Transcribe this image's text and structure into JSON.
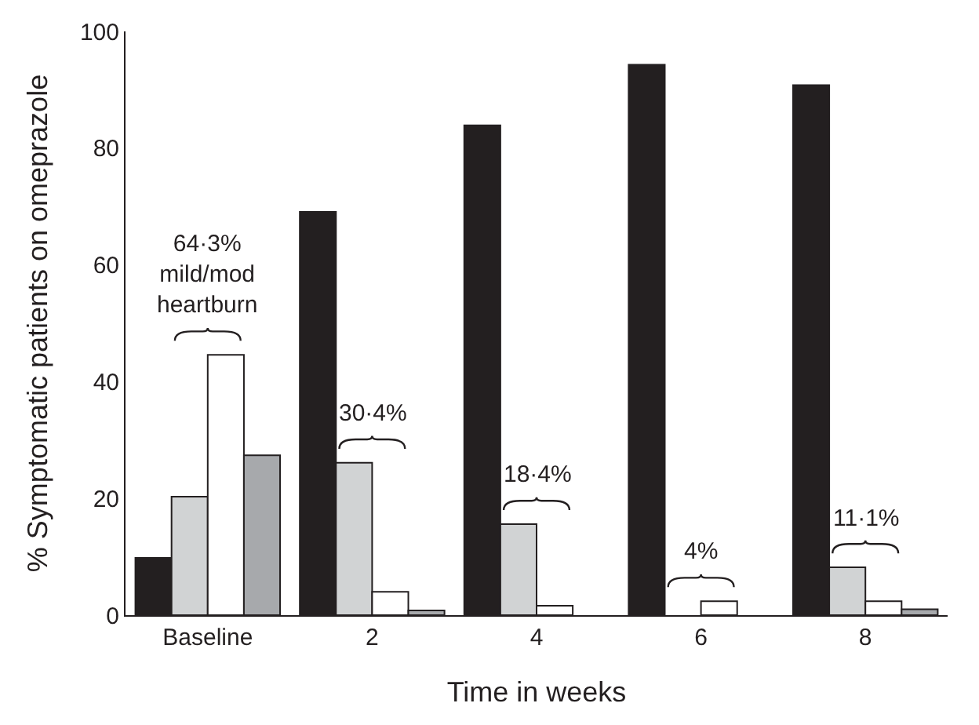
{
  "chart_data": {
    "type": "bar",
    "xlabel": "Time in weeks",
    "ylabel": "% Symptomatic patients on omeprazole",
    "categories": [
      "Baseline",
      "2",
      "4",
      "6",
      "8"
    ],
    "series": [
      {
        "color": "#231f20",
        "values": [
          9.8,
          69.1,
          83.9,
          94.3,
          90.8
        ]
      },
      {
        "color": "#d1d3d4",
        "values": [
          20.3,
          26.1,
          15.6,
          null,
          8.2
        ]
      },
      {
        "color": "#ffffff",
        "values": [
          44.6,
          4.0,
          1.6,
          2.4,
          2.4
        ]
      },
      {
        "color": "#a7a9ac",
        "values": [
          27.4,
          0.8,
          null,
          null,
          1.0
        ]
      }
    ],
    "ylim": [
      0,
      100
    ],
    "yticks": [
      0,
      20,
      40,
      60,
      80,
      100
    ],
    "annotations": [
      "64·3%\nmild/mod\nheartburn",
      "30·4%",
      "18·4%",
      "4%",
      "11·1%"
    ]
  }
}
